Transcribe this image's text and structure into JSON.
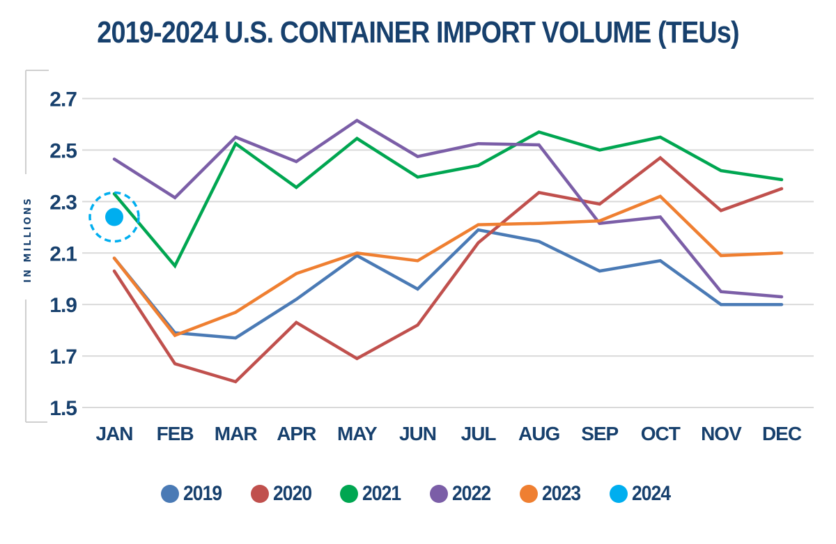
{
  "chart_data": {
    "type": "line",
    "title": "2019-2024 U.S. CONTAINER IMPORT VOLUME (TEUs)",
    "xlabel": "",
    "ylabel": "IN MILLIONS",
    "categories": [
      "JAN",
      "FEB",
      "MAR",
      "APR",
      "MAY",
      "JUN",
      "JUL",
      "AUG",
      "SEP",
      "OCT",
      "NOV",
      "DEC"
    ],
    "yticks": [
      "2.7",
      "2.5",
      "2.3",
      "2.1",
      "1.9",
      "1.7",
      "1.5"
    ],
    "ylim": [
      1.5,
      2.7
    ],
    "grid": true,
    "legend_position": "bottom",
    "series": [
      {
        "name": "2019",
        "color": "#4a7ab5",
        "values": [
          2.08,
          1.79,
          1.77,
          1.92,
          2.09,
          1.96,
          2.19,
          2.145,
          2.03,
          2.07,
          1.9,
          1.9
        ]
      },
      {
        "name": "2020",
        "color": "#c0504d",
        "values": [
          2.03,
          1.67,
          1.6,
          1.83,
          1.69,
          1.82,
          2.14,
          2.335,
          2.29,
          2.47,
          2.265,
          2.35
        ]
      },
      {
        "name": "2021",
        "color": "#00a651",
        "values": [
          2.33,
          2.05,
          2.525,
          2.355,
          2.545,
          2.395,
          2.44,
          2.57,
          2.5,
          2.55,
          2.42,
          2.385
        ]
      },
      {
        "name": "2022",
        "color": "#7b5ea7",
        "values": [
          2.465,
          2.315,
          2.55,
          2.455,
          2.615,
          2.475,
          2.525,
          2.52,
          2.215,
          2.24,
          1.95,
          1.93
        ]
      },
      {
        "name": "2023",
        "color": "#ef7f31",
        "values": [
          2.08,
          1.78,
          1.87,
          2.02,
          2.1,
          2.07,
          2.21,
          2.215,
          2.225,
          2.32,
          2.09,
          2.1
        ]
      },
      {
        "name": "2024",
        "color": "#00aeef",
        "values": [
          2.24
        ],
        "highlighted": true
      }
    ]
  },
  "colors": {
    "text": "#17406d",
    "grid": "#d9d9d9"
  }
}
